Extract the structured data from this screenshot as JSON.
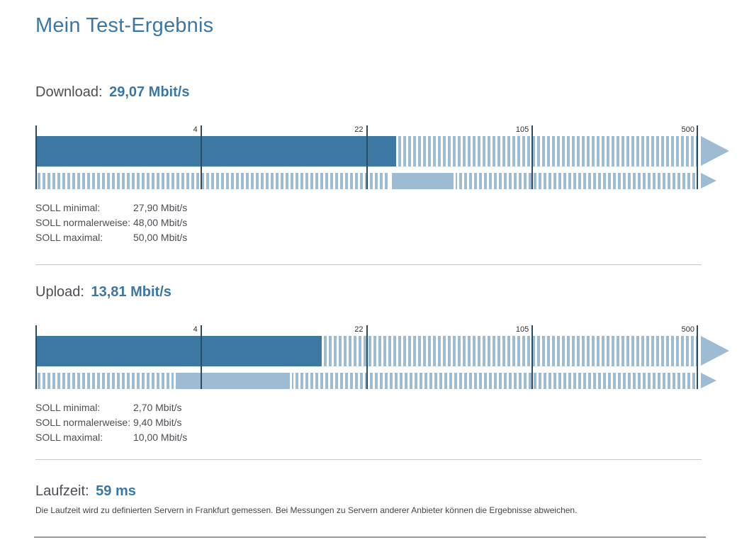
{
  "page": {
    "title": "Mein Test-Ergebnis"
  },
  "colors": {
    "heading_blue": "#3a77a6",
    "accent_blue": "#3d79a3",
    "light_blue": "#9dbbd3",
    "axis_dark": "#2b4a63",
    "text_gray": "#4b4e53",
    "divider": "#c2c9c9",
    "bottom_rule": "#999999"
  },
  "chart_data": [
    {
      "type": "bar",
      "metric": "Download",
      "label": "Download:",
      "value_text": "29,07 Mbit/s",
      "value_mbit": 29.07,
      "unit": "Mbit/s",
      "axis_scale": "log-piecewise",
      "axis_min": 0.3,
      "axis_ticks": [
        4,
        22,
        105,
        500
      ],
      "axis_tick_labels": [
        "4",
        "22",
        "105",
        "500"
      ],
      "legend": "dark solid bar = measured value, light band = contracted SOLL range",
      "soll": {
        "minimal_label": "SOLL minimal:",
        "minimal_text": "27,90 Mbit/s",
        "minimal_mbit": 27.9,
        "normal_label": "SOLL normalerweise:",
        "normal_text": "48,00 Mbit/s",
        "normal_mbit": 48.0,
        "maximal_label": "SOLL maximal:",
        "maximal_text": "50,00 Mbit/s",
        "maximal_mbit": 50.0
      }
    },
    {
      "type": "bar",
      "metric": "Upload",
      "label": "Upload:",
      "value_text": "13,81 Mbit/s",
      "value_mbit": 13.81,
      "unit": "Mbit/s",
      "axis_scale": "log-piecewise",
      "axis_min": 0.3,
      "axis_ticks": [
        4,
        22,
        105,
        500
      ],
      "axis_tick_labels": [
        "4",
        "22",
        "105",
        "500"
      ],
      "legend": "dark solid bar = measured value, light band = contracted SOLL range",
      "soll": {
        "minimal_label": "SOLL minimal:",
        "minimal_text": "2,70 Mbit/s",
        "minimal_mbit": 2.7,
        "normal_label": "SOLL normalerweise:",
        "normal_text": "9,40 Mbit/s",
        "normal_mbit": 9.4,
        "maximal_label": "SOLL maximal:",
        "maximal_text": "10,00 Mbit/s",
        "maximal_mbit": 10.0
      }
    }
  ],
  "latency": {
    "label": "Laufzeit:",
    "value_text": "59 ms",
    "footnote": "Die Laufzeit wird zu definierten Servern in Frankfurt gemessen. Bei Messungen zu Servern anderer Anbieter können die Ergebnisse abweichen."
  }
}
